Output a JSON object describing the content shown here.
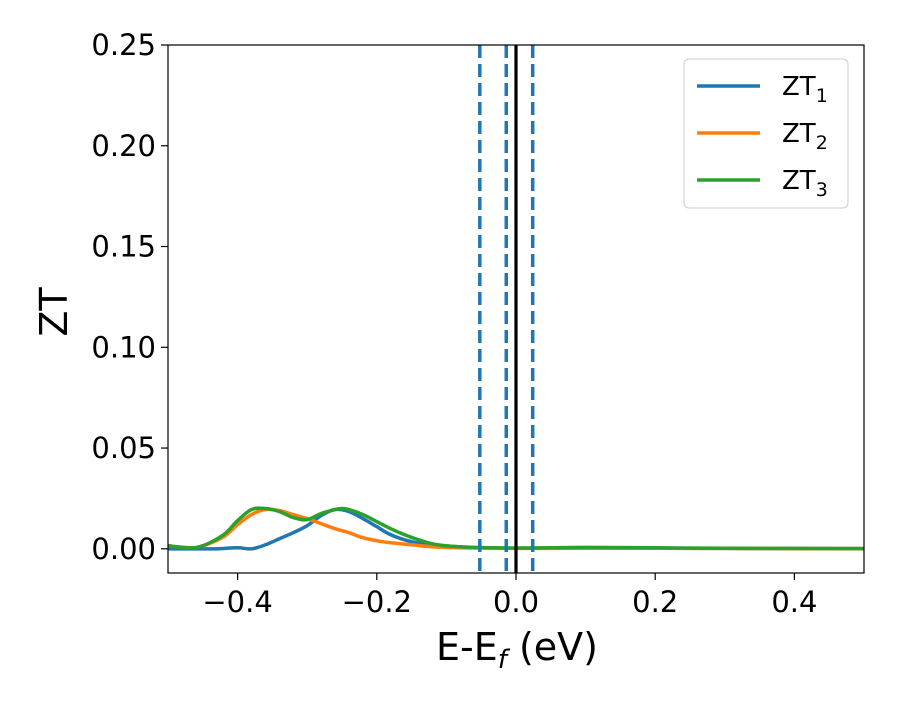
{
  "chart_data": {
    "type": "line",
    "xlabel": {
      "main": "E-E",
      "sub": "f",
      "unit": " (eV)"
    },
    "ylabel": "ZT",
    "xlim": [
      -0.5,
      0.5
    ],
    "ylim": [
      -0.012,
      0.25
    ],
    "xticks": [
      -0.4,
      -0.2,
      0.0,
      0.2,
      0.4
    ],
    "xtick_labels": [
      "−0.4",
      "−0.2",
      "0.0",
      "0.2",
      "0.4"
    ],
    "yticks": [
      0.0,
      0.05,
      0.1,
      0.15,
      0.2,
      0.25
    ],
    "ytick_labels": [
      "0.00",
      "0.05",
      "0.10",
      "0.15",
      "0.20",
      "0.25"
    ],
    "grid": false,
    "legend_position": "top-right",
    "series": [
      {
        "name": "ZT",
        "subscript": "1",
        "color": "#1f77b4",
        "x": [
          -0.5,
          -0.46,
          -0.43,
          -0.4,
          -0.38,
          -0.36,
          -0.34,
          -0.32,
          -0.3,
          -0.28,
          -0.26,
          -0.24,
          -0.22,
          -0.2,
          -0.18,
          -0.15,
          -0.12,
          -0.09,
          -0.06,
          -0.03,
          0.0,
          0.05,
          0.1,
          0.2,
          0.3,
          0.4,
          0.5
        ],
        "y": [
          0.0,
          0.0,
          0.0,
          0.0005,
          0.0,
          0.002,
          0.005,
          0.008,
          0.0115,
          0.0165,
          0.0195,
          0.0185,
          0.015,
          0.011,
          0.007,
          0.0035,
          0.0018,
          0.001,
          0.0006,
          0.0004,
          0.0003,
          0.0003,
          0.0004,
          0.0003,
          0.0002,
          0.0001,
          0.0001
        ]
      },
      {
        "name": "ZT",
        "subscript": "2",
        "color": "#ff7f0e",
        "x": [
          -0.5,
          -0.47,
          -0.45,
          -0.42,
          -0.4,
          -0.38,
          -0.36,
          -0.34,
          -0.32,
          -0.3,
          -0.28,
          -0.26,
          -0.24,
          -0.22,
          -0.2,
          -0.18,
          -0.15,
          -0.12,
          -0.09,
          -0.06,
          -0.03,
          0.0,
          0.05,
          0.1,
          0.2,
          0.3,
          0.4,
          0.5
        ],
        "y": [
          0.0015,
          0.0005,
          0.0015,
          0.006,
          0.012,
          0.017,
          0.0195,
          0.019,
          0.017,
          0.015,
          0.0125,
          0.01,
          0.008,
          0.0055,
          0.004,
          0.003,
          0.002,
          0.001,
          0.0006,
          0.0004,
          0.0003,
          0.0002,
          0.0002,
          0.0003,
          0.0003,
          0.0002,
          0.0001,
          0.0001
        ]
      },
      {
        "name": "ZT",
        "subscript": "3",
        "color": "#2ca02c",
        "x": [
          -0.5,
          -0.47,
          -0.45,
          -0.42,
          -0.4,
          -0.38,
          -0.36,
          -0.34,
          -0.32,
          -0.3,
          -0.28,
          -0.26,
          -0.25,
          -0.24,
          -0.22,
          -0.2,
          -0.18,
          -0.16,
          -0.14,
          -0.12,
          -0.1,
          -0.08,
          -0.06,
          -0.03,
          0.0,
          0.05,
          0.1,
          0.2,
          0.3,
          0.4,
          0.5
        ],
        "y": [
          0.0015,
          0.0005,
          0.0015,
          0.007,
          0.014,
          0.0195,
          0.02,
          0.0185,
          0.0155,
          0.0145,
          0.0175,
          0.0195,
          0.02,
          0.0195,
          0.017,
          0.0135,
          0.01,
          0.007,
          0.0045,
          0.0025,
          0.0015,
          0.001,
          0.0007,
          0.0005,
          0.0004,
          0.0005,
          0.0007,
          0.0005,
          0.0003,
          0.0002,
          0.0001
        ]
      }
    ],
    "vlines": [
      {
        "x": -0.052,
        "style": "dashed",
        "color": "#1f77b4"
      },
      {
        "x": -0.014,
        "style": "dashed",
        "color": "#1f77b4"
      },
      {
        "x": 0.0,
        "style": "solid",
        "color": "#000000"
      },
      {
        "x": 0.024,
        "style": "dashed",
        "color": "#1f77b4"
      }
    ]
  }
}
